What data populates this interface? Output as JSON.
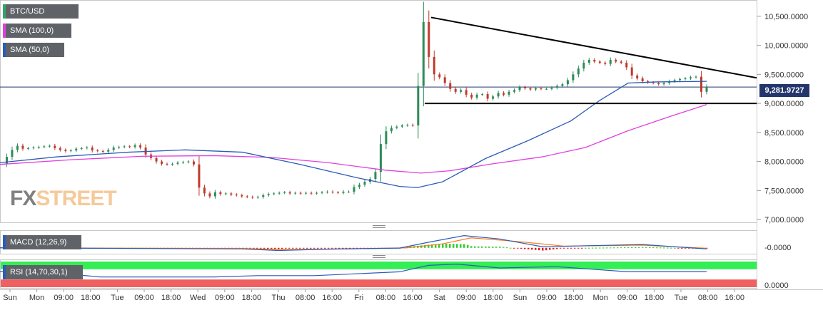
{
  "symbol": "BTC/USD",
  "indicators": {
    "sma100": {
      "label": "SMA (100,0)",
      "color": "#e040e0"
    },
    "sma50": {
      "label": "SMA (50,0)",
      "color": "#2b5cb8"
    },
    "macd": {
      "label": "MACD (12,26,9)",
      "value_label": "-0.0000"
    },
    "rsi": {
      "label": "RSI (14,70,30,1)",
      "value_label": "0.0000"
    }
  },
  "last_price_label": "9,281.9727",
  "watermark": {
    "part1": "FX",
    "part2": "STREET"
  },
  "colors": {
    "up": "#2e8b57",
    "down": "#c0392b",
    "macd_line": "#2b5cb8",
    "signal_line": "#ff7a1a",
    "hist_pos": "#33cc33",
    "hist_neg": "#e02020",
    "rsi_over": "#33ee55",
    "rsi_under": "#f06060"
  },
  "chart_data": {
    "type": "candlestick",
    "y_ticks": [
      "10,500.0000",
      "10,000.0000",
      "9,500.0000",
      "9,000.0000",
      "8,500.0000",
      "8,000.0000",
      "7,500.0000",
      "7,000.0000"
    ],
    "ylim": [
      6940,
      10780
    ],
    "x_ticks": [
      "Sun",
      "Mon",
      "09:00",
      "18:00",
      "Tue",
      "09:00",
      "18:00",
      "Wed",
      "09:00",
      "18:00",
      "Thu",
      "08:00",
      "16:00",
      "Fri",
      "08:00",
      "16:00",
      "Sat",
      "09:00",
      "18:00",
      "Sun",
      "09:00",
      "18:00",
      "Mon",
      "09:00",
      "18:00",
      "Tue",
      "08:00",
      "16:00"
    ],
    "price_series": [
      7960,
      8080,
      8200,
      8270,
      8220,
      8230,
      8240,
      8250,
      8260,
      8270,
      8230,
      8200,
      8180,
      8190,
      8220,
      8230,
      8240,
      8190,
      8180,
      8170,
      8200,
      8240,
      8250,
      8260,
      8250,
      8280,
      8240,
      8120,
      8060,
      8000,
      7960,
      7950,
      7960,
      7980,
      7990,
      8000,
      7950,
      7550,
      7450,
      7400,
      7470,
      7440,
      7450,
      7430,
      7420,
      7400,
      7390,
      7380,
      7390,
      7420,
      7440,
      7450,
      7460,
      7470,
      7450,
      7460,
      7450,
      7460,
      7450,
      7460,
      7470,
      7480,
      7470,
      7460,
      7480,
      7480,
      7560,
      7600,
      7650,
      7700,
      7820,
      8300,
      8520,
      8580,
      8600,
      8620,
      8630,
      8620,
      9300,
      10400,
      9800,
      9500,
      9450,
      9350,
      9250,
      9200,
      9230,
      9150,
      9100,
      9150,
      9160,
      9080,
      9120,
      9180,
      9150,
      9200,
      9230,
      9280,
      9260,
      9240,
      9260,
      9250,
      9250,
      9270,
      9300,
      9330,
      9400,
      9500,
      9600,
      9700,
      9750,
      9720,
      9700,
      9680,
      9750,
      9720,
      9700,
      9620,
      9480,
      9430,
      9380,
      9360,
      9350,
      9330,
      9350,
      9380,
      9400,
      9420,
      9430,
      9450,
      9460,
      9200,
      9282
    ],
    "sma50": [
      [
        0,
        7980
      ],
      [
        80,
        8080
      ],
      [
        180,
        8160
      ],
      [
        260,
        8200
      ],
      [
        340,
        8160
      ],
      [
        420,
        7950
      ],
      [
        500,
        7720
      ],
      [
        560,
        7570
      ],
      [
        585,
        7550
      ],
      [
        620,
        7650
      ],
      [
        680,
        8050
      ],
      [
        740,
        8360
      ],
      [
        800,
        8700
      ],
      [
        840,
        9050
      ],
      [
        880,
        9350
      ],
      [
        920,
        9370
      ],
      [
        990,
        9380
      ]
    ],
    "sma100": [
      [
        0,
        7950
      ],
      [
        100,
        8030
      ],
      [
        200,
        8090
      ],
      [
        300,
        8100
      ],
      [
        380,
        8070
      ],
      [
        460,
        7980
      ],
      [
        540,
        7850
      ],
      [
        590,
        7800
      ],
      [
        630,
        7840
      ],
      [
        690,
        7960
      ],
      [
        760,
        8080
      ],
      [
        820,
        8240
      ],
      [
        880,
        8530
      ],
      [
        940,
        8780
      ],
      [
        990,
        8980
      ]
    ],
    "trendlines": {
      "descending": [
        [
          604,
          10480
        ],
        [
          1060,
          9440
        ]
      ],
      "support": [
        [
          595,
          9000
        ],
        [
          1060,
          9000
        ]
      ]
    },
    "macd": {
      "macd_line": [
        [
          0,
          0
        ],
        [
          340,
          -0.05
        ],
        [
          390,
          -0.12
        ],
        [
          460,
          -0.06
        ],
        [
          560,
          -0.01
        ],
        [
          600,
          0.25
        ],
        [
          650,
          0.55
        ],
        [
          700,
          0.4
        ],
        [
          760,
          0.05
        ],
        [
          900,
          0.15
        ],
        [
          990,
          -0.05
        ]
      ],
      "signal_line": [
        [
          0,
          0
        ],
        [
          340,
          -0.03
        ],
        [
          400,
          -0.08
        ],
        [
          480,
          -0.05
        ],
        [
          570,
          0
        ],
        [
          620,
          0.18
        ],
        [
          660,
          0.45
        ],
        [
          720,
          0.3
        ],
        [
          790,
          0.08
        ],
        [
          900,
          0.12
        ],
        [
          990,
          -0.02
        ]
      ],
      "value_range": [
        -0.2,
        0.7
      ]
    },
    "rsi": {
      "line": [
        [
          0,
          60
        ],
        [
          60,
          60
        ],
        [
          140,
          40
        ],
        [
          300,
          40
        ],
        [
          360,
          45
        ],
        [
          440,
          45
        ],
        [
          560,
          60
        ],
        [
          600,
          85
        ],
        [
          640,
          90
        ],
        [
          700,
          75
        ],
        [
          780,
          80
        ],
        [
          880,
          60
        ],
        [
          990,
          60
        ]
      ],
      "overbought": 70,
      "oversold": 30
    }
  }
}
